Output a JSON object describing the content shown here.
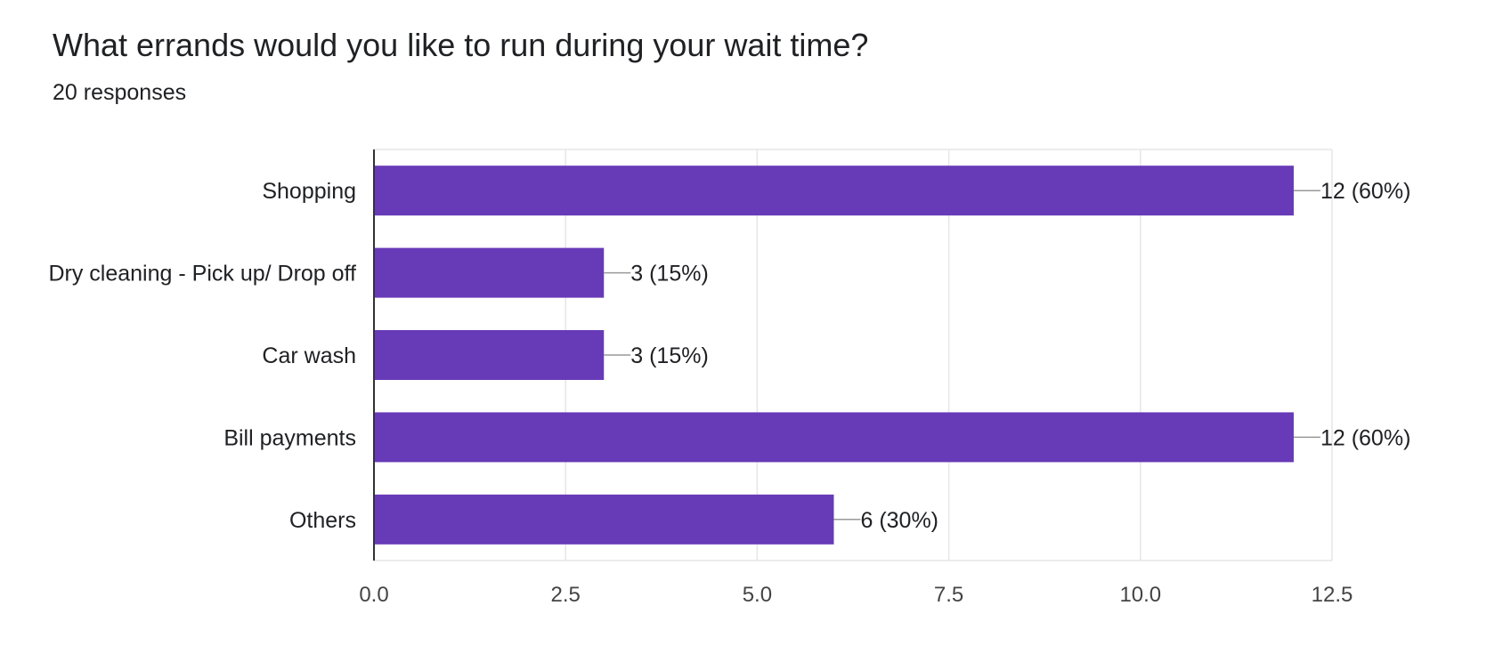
{
  "question": {
    "title": "What errands would you like to run during your wait time?",
    "responses": "20 responses"
  },
  "colors": {
    "bar": "#673ab7",
    "text": "#202124",
    "grid": "#e6e6e6",
    "axis": "#333333",
    "leader": "#999999"
  },
  "chart_data": {
    "type": "bar",
    "orientation": "horizontal",
    "categories": [
      "Shopping",
      "Dry cleaning - Pick up/ Drop off",
      "Car wash",
      "Bill payments",
      "Others"
    ],
    "values": [
      12,
      3,
      3,
      12,
      6
    ],
    "data_labels": [
      "12 (60%)",
      "3 (15%)",
      "3 (15%)",
      "12 (60%)",
      "6 (30%)"
    ],
    "x_ticks": [
      "0.0",
      "2.5",
      "5.0",
      "7.5",
      "10.0",
      "12.5"
    ],
    "xlim": [
      0,
      12.5
    ],
    "grid": true
  }
}
